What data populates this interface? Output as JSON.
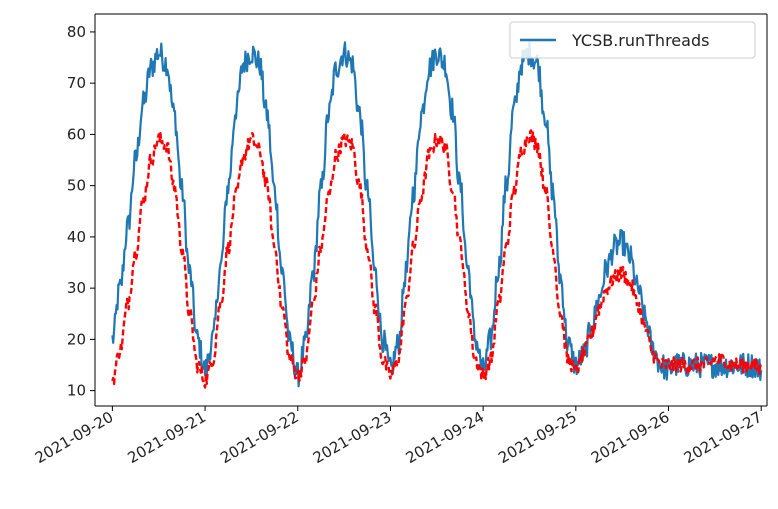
{
  "chart_data": {
    "type": "line",
    "title": "",
    "xlabel": "",
    "ylabel": "",
    "x_range": [
      "2021-09-19T19:30:00",
      "2021-09-27T01:30:00"
    ],
    "ylim": [
      7,
      83.5
    ],
    "grid": false,
    "legend_position": "top-right",
    "x_ticks": [
      "2021-09-20",
      "2021-09-21",
      "2021-09-22",
      "2021-09-23",
      "2021-09-24",
      "2021-09-25",
      "2021-09-26",
      "2021-09-27"
    ],
    "y_ticks": [
      10,
      20,
      30,
      40,
      50,
      60,
      70,
      80
    ],
    "series": [
      {
        "name": "YCSB.runThreads",
        "color": "#1f77b4",
        "style": "solid",
        "x": [
          "2021-09-20T00:00",
          "2021-09-20T02:00",
          "2021-09-20T04:00",
          "2021-09-20T06:00",
          "2021-09-20T08:00",
          "2021-09-20T10:00",
          "2021-09-20T12:00",
          "2021-09-20T14:00",
          "2021-09-20T16:00",
          "2021-09-20T18:00",
          "2021-09-20T20:00",
          "2021-09-20T22:00",
          "2021-09-21T00:00",
          "2021-09-21T02:00",
          "2021-09-21T04:00",
          "2021-09-21T06:00",
          "2021-09-21T08:00",
          "2021-09-21T10:00",
          "2021-09-21T12:00",
          "2021-09-21T14:00",
          "2021-09-21T16:00",
          "2021-09-21T18:00",
          "2021-09-21T20:00",
          "2021-09-21T22:00",
          "2021-09-22T00:00",
          "2021-09-22T02:00",
          "2021-09-22T04:00",
          "2021-09-22T06:00",
          "2021-09-22T08:00",
          "2021-09-22T10:00",
          "2021-09-22T12:00",
          "2021-09-22T14:00",
          "2021-09-22T16:00",
          "2021-09-22T18:00",
          "2021-09-22T20:00",
          "2021-09-22T22:00",
          "2021-09-23T00:00",
          "2021-09-23T02:00",
          "2021-09-23T04:00",
          "2021-09-23T06:00",
          "2021-09-23T08:00",
          "2021-09-23T10:00",
          "2021-09-23T12:00",
          "2021-09-23T14:00",
          "2021-09-23T16:00",
          "2021-09-23T18:00",
          "2021-09-23T20:00",
          "2021-09-23T22:00",
          "2021-09-24T00:00",
          "2021-09-24T02:00",
          "2021-09-24T04:00",
          "2021-09-24T06:00",
          "2021-09-24T08:00",
          "2021-09-24T10:00",
          "2021-09-24T12:00",
          "2021-09-24T14:00",
          "2021-09-24T16:00",
          "2021-09-24T18:00",
          "2021-09-24T20:00",
          "2021-09-24T22:00",
          "2021-09-25T00:00",
          "2021-09-25T02:00",
          "2021-09-25T04:00",
          "2021-09-25T06:00",
          "2021-09-25T08:00",
          "2021-09-25T10:00",
          "2021-09-25T12:00",
          "2021-09-25T14:00",
          "2021-09-25T16:00",
          "2021-09-25T18:00",
          "2021-09-25T20:00",
          "2021-09-25T22:00",
          "2021-09-26T00:00",
          "2021-09-26T02:00",
          "2021-09-26T04:00",
          "2021-09-26T06:00",
          "2021-09-26T08:00",
          "2021-09-26T10:00",
          "2021-09-26T12:00",
          "2021-09-26T14:00",
          "2021-09-26T16:00",
          "2021-09-26T18:00",
          "2021-09-26T20:00",
          "2021-09-26T22:00",
          "2021-09-27T00:00"
        ],
        "y": [
          20,
          30,
          42,
          55,
          66,
          73,
          76,
          74,
          64,
          49,
          33,
          20,
          14,
          20,
          34,
          50,
          65,
          74,
          76,
          74,
          64,
          49,
          33,
          19,
          13,
          19,
          33,
          49,
          64,
          73,
          76,
          74,
          64,
          49,
          33,
          20,
          14,
          19,
          33,
          49,
          64,
          73,
          76,
          74,
          65,
          50,
          34,
          20,
          14,
          20,
          34,
          50,
          65,
          74,
          76,
          74,
          64,
          49,
          32,
          19,
          15,
          17,
          22,
          28,
          34,
          38,
          39,
          36,
          30,
          24,
          18,
          15,
          14,
          15,
          15,
          15,
          15,
          15,
          15,
          15,
          15,
          15,
          15,
          15,
          14
        ]
      },
      {
        "name": "",
        "color": "#ff0000",
        "style": "dashed",
        "x": [
          "2021-09-20T00:00",
          "2021-09-20T02:00",
          "2021-09-20T04:00",
          "2021-09-20T06:00",
          "2021-09-20T08:00",
          "2021-09-20T10:00",
          "2021-09-20T12:00",
          "2021-09-20T14:00",
          "2021-09-20T16:00",
          "2021-09-20T18:00",
          "2021-09-20T20:00",
          "2021-09-20T22:00",
          "2021-09-21T00:00",
          "2021-09-21T02:00",
          "2021-09-21T04:00",
          "2021-09-21T06:00",
          "2021-09-21T08:00",
          "2021-09-21T10:00",
          "2021-09-21T12:00",
          "2021-09-21T14:00",
          "2021-09-21T16:00",
          "2021-09-21T18:00",
          "2021-09-21T20:00",
          "2021-09-21T22:00",
          "2021-09-22T00:00",
          "2021-09-22T02:00",
          "2021-09-22T04:00",
          "2021-09-22T06:00",
          "2021-09-22T08:00",
          "2021-09-22T10:00",
          "2021-09-22T12:00",
          "2021-09-22T14:00",
          "2021-09-22T16:00",
          "2021-09-22T18:00",
          "2021-09-22T20:00",
          "2021-09-22T22:00",
          "2021-09-23T00:00",
          "2021-09-23T02:00",
          "2021-09-23T04:00",
          "2021-09-23T06:00",
          "2021-09-23T08:00",
          "2021-09-23T10:00",
          "2021-09-23T12:00",
          "2021-09-23T14:00",
          "2021-09-23T16:00",
          "2021-09-23T18:00",
          "2021-09-23T20:00",
          "2021-09-23T22:00",
          "2021-09-24T00:00",
          "2021-09-24T02:00",
          "2021-09-24T04:00",
          "2021-09-24T06:00",
          "2021-09-24T08:00",
          "2021-09-24T10:00",
          "2021-09-24T12:00",
          "2021-09-24T14:00",
          "2021-09-24T16:00",
          "2021-09-24T18:00",
          "2021-09-24T20:00",
          "2021-09-24T22:00",
          "2021-09-25T00:00",
          "2021-09-25T02:00",
          "2021-09-25T04:00",
          "2021-09-25T06:00",
          "2021-09-25T08:00",
          "2021-09-25T10:00",
          "2021-09-25T12:00",
          "2021-09-25T14:00",
          "2021-09-25T16:00",
          "2021-09-25T18:00",
          "2021-09-25T20:00",
          "2021-09-25T22:00",
          "2021-09-26T00:00",
          "2021-09-26T02:00",
          "2021-09-26T04:00",
          "2021-09-26T06:00",
          "2021-09-26T08:00",
          "2021-09-26T10:00",
          "2021-09-26T12:00",
          "2021-09-26T14:00",
          "2021-09-26T16:00",
          "2021-09-26T18:00",
          "2021-09-26T20:00",
          "2021-09-26T22:00",
          "2021-09-27T00:00"
        ],
        "y": [
          12,
          18,
          27,
          37,
          47,
          55,
          59,
          58,
          50,
          38,
          25,
          15,
          12,
          16,
          27,
          38,
          48,
          56,
          59,
          57,
          50,
          38,
          26,
          16,
          13,
          16,
          27,
          38,
          48,
          56,
          59,
          58,
          50,
          38,
          26,
          16,
          13,
          16,
          27,
          38,
          48,
          56,
          59,
          58,
          50,
          39,
          26,
          16,
          13,
          16,
          27,
          38,
          49,
          57,
          60,
          58,
          50,
          38,
          25,
          16,
          14,
          17,
          21,
          26,
          30,
          32,
          33,
          31,
          27,
          22,
          17,
          15,
          15,
          15,
          15,
          15,
          15,
          15,
          16,
          16,
          15,
          15,
          15,
          15,
          14
        ]
      }
    ]
  }
}
